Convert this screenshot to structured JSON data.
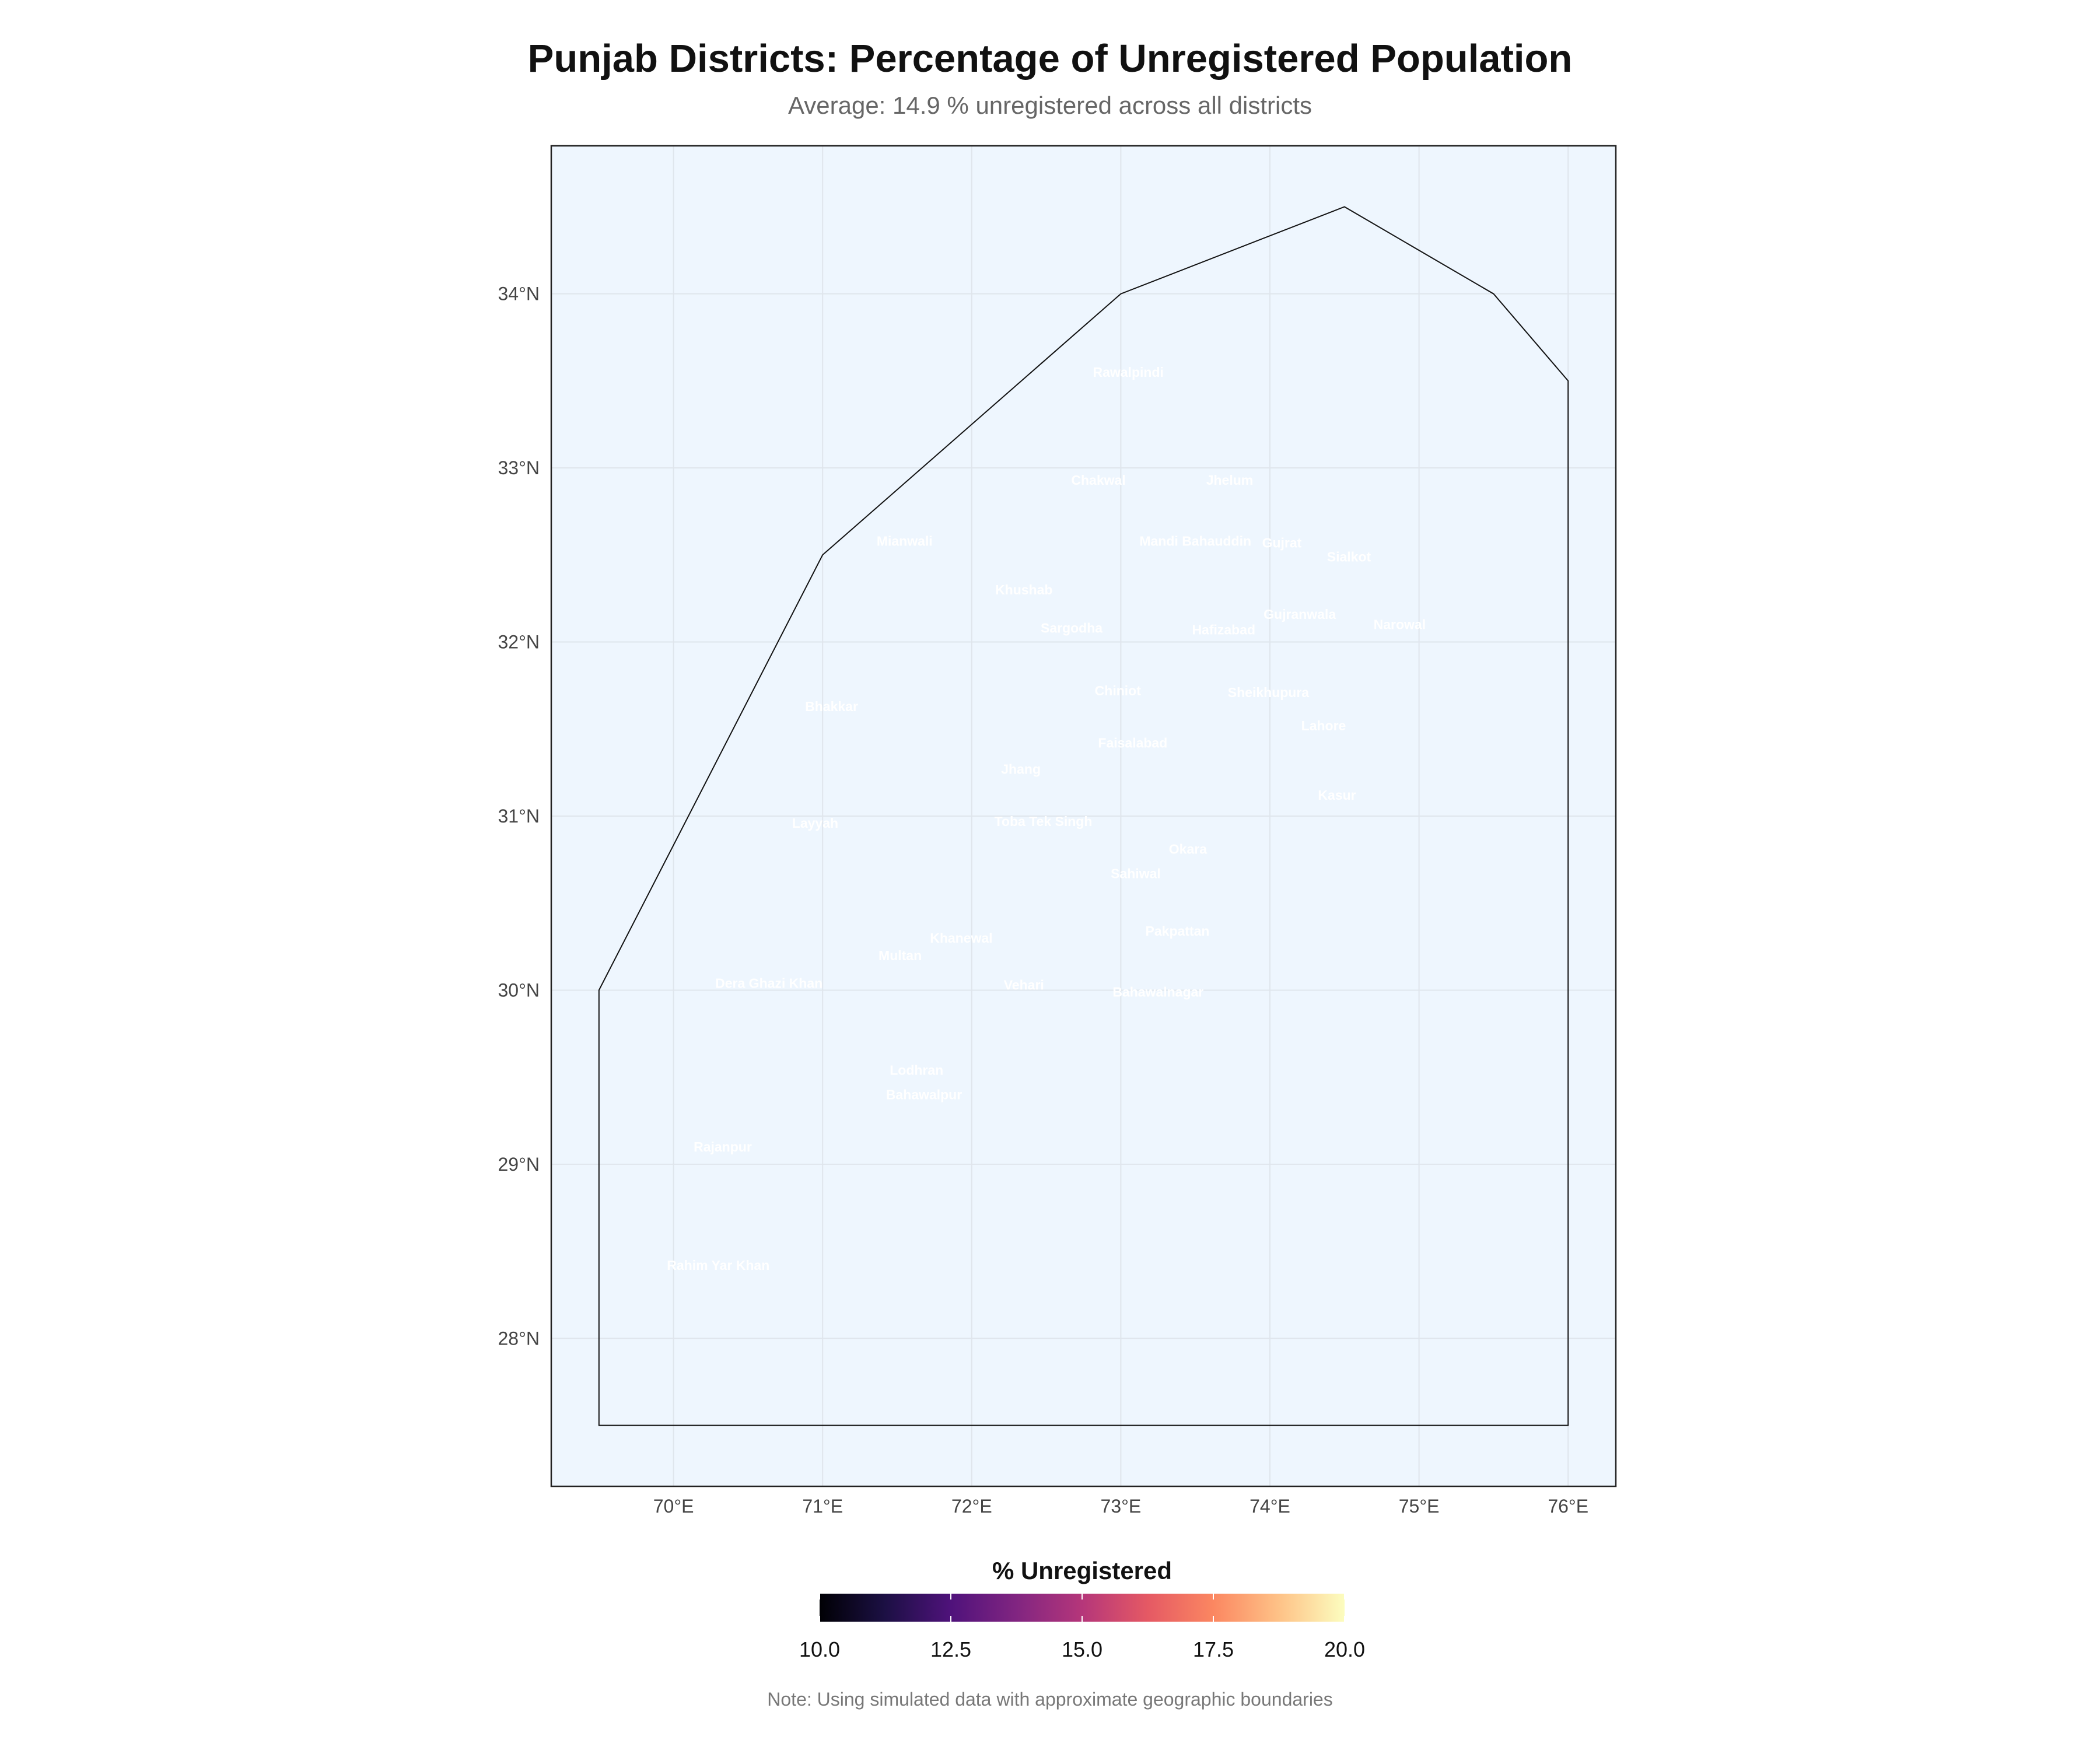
{
  "title": "Punjab Districts: Percentage of Unregistered Population",
  "subtitle": "Average: 14.9 % unregistered across all districts",
  "note": "Note: Using simulated data with approximate geographic boundaries",
  "colors": {
    "panel_background": "#eef6fe",
    "grid": "#dfe5ec",
    "boundary": "#111111",
    "label_text": "#ffffff",
    "colorscale": [
      "#000004",
      "#1c1044",
      "#4f127b",
      "#812581",
      "#b5367a",
      "#e55964",
      "#fb8761",
      "#fec287",
      "#fcfdbf"
    ]
  },
  "chart_data": {
    "type": "map",
    "projection": "lon-lat",
    "xlim": [
      69.18,
      76.32
    ],
    "ylim": [
      27.15,
      34.85
    ],
    "x_ticks": [
      70,
      71,
      72,
      73,
      74,
      75,
      76
    ],
    "x_tick_labels": [
      "70°E",
      "71°E",
      "72°E",
      "73°E",
      "74°E",
      "75°E",
      "76°E"
    ],
    "y_ticks": [
      28,
      29,
      30,
      31,
      32,
      33,
      34
    ],
    "y_tick_labels": [
      "28°N",
      "29°N",
      "30°N",
      "31°N",
      "32°N",
      "33°N",
      "34°N"
    ],
    "grid": true,
    "boundary_polygon": [
      [
        69.5,
        27.5
      ],
      [
        69.5,
        30.0
      ],
      [
        71.0,
        32.5
      ],
      [
        73.0,
        34.0
      ],
      [
        74.5,
        34.5
      ],
      [
        75.5,
        34.0
      ],
      [
        76.0,
        33.5
      ],
      [
        76.0,
        27.5
      ]
    ],
    "districts": [
      {
        "name": "Rawalpindi",
        "lon": 73.05,
        "lat": 33.55
      },
      {
        "name": "Chakwal",
        "lon": 72.85,
        "lat": 32.93
      },
      {
        "name": "Jhelum",
        "lon": 73.73,
        "lat": 32.93
      },
      {
        "name": "Mianwali",
        "lon": 71.55,
        "lat": 32.58
      },
      {
        "name": "Mandi Bahauddin",
        "lon": 73.5,
        "lat": 32.58
      },
      {
        "name": "Gujrat",
        "lon": 74.08,
        "lat": 32.57
      },
      {
        "name": "Sialkot",
        "lon": 74.53,
        "lat": 32.49
      },
      {
        "name": "Khushab",
        "lon": 72.35,
        "lat": 32.3
      },
      {
        "name": "Gujranwala",
        "lon": 74.2,
        "lat": 32.16
      },
      {
        "name": "Narowal",
        "lon": 74.87,
        "lat": 32.1
      },
      {
        "name": "Sargodha",
        "lon": 72.67,
        "lat": 32.08
      },
      {
        "name": "Hafizabad",
        "lon": 73.69,
        "lat": 32.07
      },
      {
        "name": "Chiniot",
        "lon": 72.98,
        "lat": 31.72
      },
      {
        "name": "Sheikhupura",
        "lon": 73.99,
        "lat": 31.71
      },
      {
        "name": "Bhakkar",
        "lon": 71.06,
        "lat": 31.63
      },
      {
        "name": "Lahore",
        "lon": 74.36,
        "lat": 31.52
      },
      {
        "name": "Faisalabad",
        "lon": 73.08,
        "lat": 31.42
      },
      {
        "name": "Jhang",
        "lon": 72.33,
        "lat": 31.27
      },
      {
        "name": "Kasur",
        "lon": 74.45,
        "lat": 31.12
      },
      {
        "name": "Layyah",
        "lon": 70.95,
        "lat": 30.96
      },
      {
        "name": "Toba Tek Singh",
        "lon": 72.48,
        "lat": 30.97
      },
      {
        "name": "Okara",
        "lon": 73.45,
        "lat": 30.81
      },
      {
        "name": "Sahiwal",
        "lon": 73.1,
        "lat": 30.67
      },
      {
        "name": "Pakpattan",
        "lon": 73.38,
        "lat": 30.34
      },
      {
        "name": "Khanewal",
        "lon": 71.93,
        "lat": 30.3
      },
      {
        "name": "Multan",
        "lon": 71.52,
        "lat": 30.2
      },
      {
        "name": "Dera Ghazi Khan",
        "lon": 70.64,
        "lat": 30.04
      },
      {
        "name": "Vehari",
        "lon": 72.35,
        "lat": 30.03
      },
      {
        "name": "Bahawalnagar",
        "lon": 73.25,
        "lat": 29.99
      },
      {
        "name": "Lodhran",
        "lon": 71.63,
        "lat": 29.54
      },
      {
        "name": "Bahawalpur",
        "lon": 71.68,
        "lat": 29.4
      },
      {
        "name": "Rajanpur",
        "lon": 70.33,
        "lat": 29.1
      },
      {
        "name": "Rahim Yar Khan",
        "lon": 70.3,
        "lat": 28.42
      }
    ],
    "legend": {
      "title": "% Unregistered",
      "min": 10,
      "max": 20,
      "ticks": [
        10,
        12.5,
        15,
        17.5,
        20
      ],
      "tick_labels": [
        "10.0",
        "12.5",
        "15.0",
        "17.5",
        "20.0"
      ],
      "position": "bottom"
    }
  }
}
